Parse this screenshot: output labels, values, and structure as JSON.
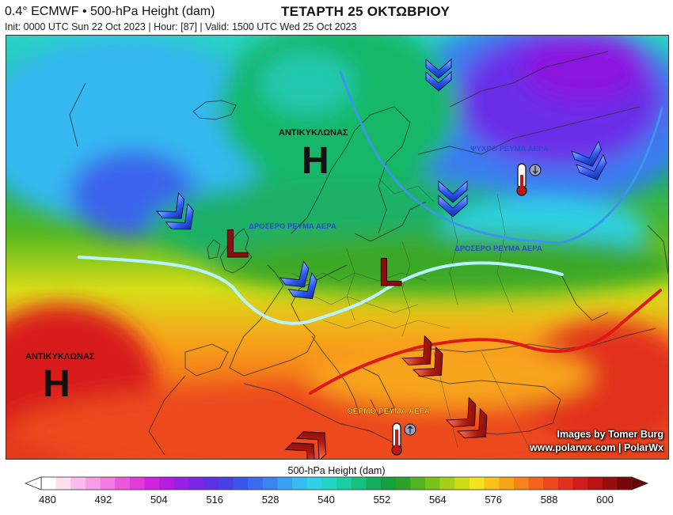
{
  "header": {
    "title": "0.4° ECMWF • 500-hPa Height (dam)",
    "subtitle": "Init: 0000 UTC Sun 22 Oct 2023 | Hour: [87] | Valid: 1500 UTC Wed 25 Oct 2023",
    "date": "ΤΕΤΑΡΤΗ 25 ΟΚΤΩΒΡΙΟΥ"
  },
  "annotations": {
    "anticyclone_north": "ΑΝΤΙΚΥΚΛΩΝΑΣ",
    "anticyclone_west": "ΑΝΤΙΚΥΚΛΩΝΑΣ",
    "high_north": "H",
    "high_west": "H",
    "low_west": "L",
    "low_central": "L",
    "cold_current": "ΨΥΧΡΟ ΡΕΥΜΑ ΑΕΡΑ",
    "cool_current_west": "ΔΡΟΣΕΡΟ ΡΕΥΜΑ ΑΕΡΑ",
    "cool_current_east": "ΔΡΟΣΕΡΟ ΡΕΥΜΑ ΑΕΡΑ",
    "warm_current": "ΘΕΡΜΟ ΡΕΥΜΑ ΑΕΡΑ"
  },
  "credits": {
    "author": "Images by Tomer Burg",
    "site": "www.polarwx.com | PolarWx"
  },
  "colorbar": {
    "title": "500-hPa Height (dam)",
    "ticks": [
      "480",
      "492",
      "504",
      "516",
      "528",
      "540",
      "552",
      "564",
      "576",
      "588",
      "600"
    ],
    "colors": [
      "#ffffff",
      "#fde0f0",
      "#fbbcec",
      "#f79ce6",
      "#f27ae0",
      "#ec58da",
      "#e23ad8",
      "#cf22dc",
      "#b41de0",
      "#9720e3",
      "#7a26e6",
      "#5e30e8",
      "#4a40ea",
      "#3d55ec",
      "#3a6bee",
      "#3a84f0",
      "#3aa0f2",
      "#36bcf0",
      "#2ed2e4",
      "#22d6c4",
      "#1ccfa2",
      "#18c080",
      "#14ae5e",
      "#16a03c",
      "#2ea228",
      "#52b220",
      "#78c21a",
      "#a4d018",
      "#cedc18",
      "#f4e21a",
      "#f8c21a",
      "#f8a41a",
      "#f6841c",
      "#f2641c",
      "#ec481e",
      "#e2301e",
      "#d01c1c",
      "#b81414",
      "#980e0e",
      "#780606"
    ]
  }
}
